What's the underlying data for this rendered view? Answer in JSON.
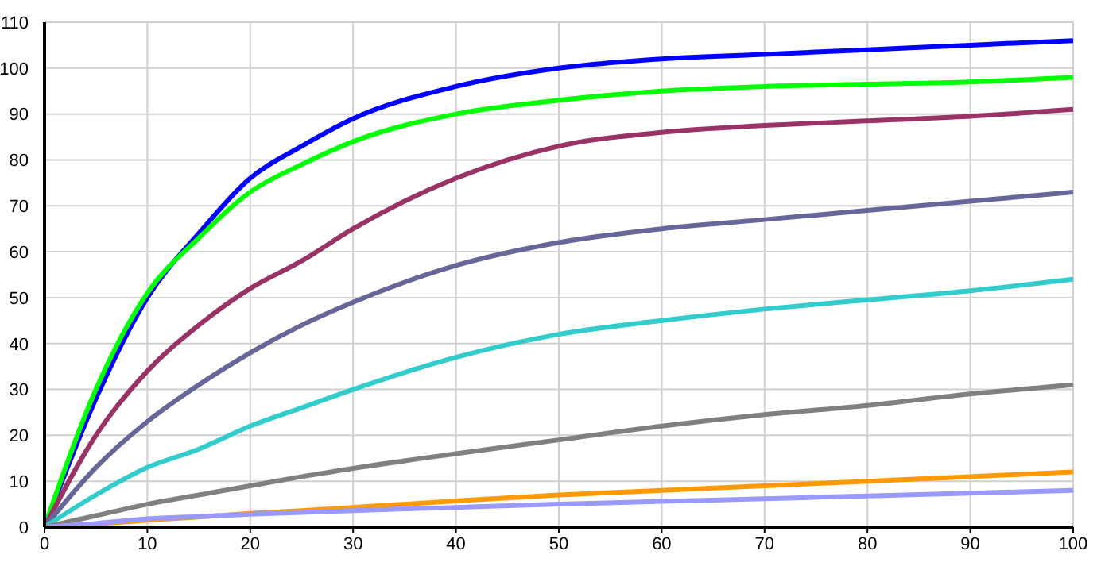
{
  "chart_data": {
    "type": "line",
    "x": [
      0,
      5,
      10,
      15,
      20,
      25,
      30,
      40,
      50,
      60,
      70,
      80,
      90,
      100
    ],
    "xlim": [
      0,
      100
    ],
    "xticks": [
      0,
      10,
      20,
      30,
      40,
      50,
      60,
      70,
      80,
      90,
      100
    ],
    "ylim": [
      0,
      110
    ],
    "yticks": [
      0,
      10,
      20,
      30,
      40,
      50,
      60,
      70,
      80,
      90,
      100,
      110
    ],
    "grid": true,
    "legend": false,
    "marker": "none",
    "line_style": "solid",
    "series": [
      {
        "color": "#0000ff",
        "values": [
          0,
          28,
          50,
          64,
          76,
          83,
          89,
          96,
          100,
          102,
          103,
          104,
          105,
          106
        ]
      },
      {
        "color": "#00ff00",
        "values": [
          0,
          30,
          51,
          63,
          73,
          79,
          84,
          90,
          93,
          95,
          96,
          96.5,
          97,
          98
        ]
      },
      {
        "color": "#993366",
        "values": [
          0,
          20,
          34,
          44,
          52,
          58,
          65,
          76,
          83,
          86,
          87.5,
          88.5,
          89.5,
          91
        ]
      },
      {
        "color": "#666699",
        "values": [
          0,
          13,
          23,
          31,
          38,
          44,
          49,
          57,
          62,
          65,
          67,
          69,
          71,
          73
        ]
      },
      {
        "color": "#33cccc",
        "values": [
          0,
          7,
          13,
          17,
          22,
          26,
          30,
          37,
          42,
          45,
          47.5,
          49.5,
          51.5,
          54
        ]
      },
      {
        "color": "#808080",
        "values": [
          0,
          2.5,
          5,
          7,
          9,
          11,
          12.8,
          16,
          19,
          22,
          24.5,
          26.5,
          29,
          31
        ]
      },
      {
        "color": "#ff9900",
        "values": [
          0,
          0.7,
          1.5,
          2.2,
          3,
          3.6,
          4.3,
          5.7,
          7,
          8,
          9,
          10,
          11,
          12
        ]
      },
      {
        "color": "#9999ff",
        "values": [
          0,
          0.8,
          1.8,
          2.3,
          2.8,
          3.2,
          3.6,
          4.3,
          5,
          5.6,
          6.2,
          6.8,
          7.4,
          8
        ]
      }
    ]
  }
}
